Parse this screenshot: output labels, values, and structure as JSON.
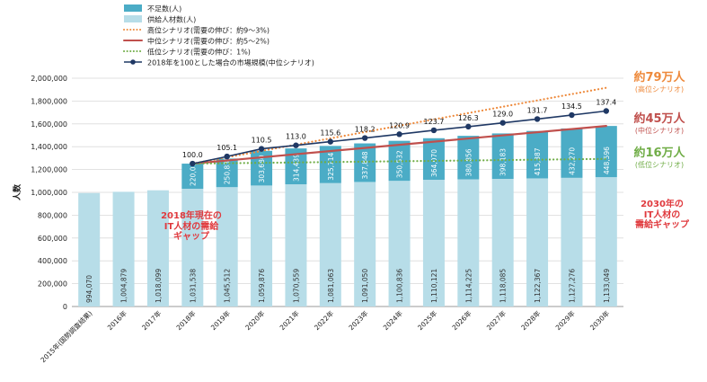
{
  "chart_data": {
    "type": "bar",
    "ylabel": "人数",
    "ylim": [
      0,
      2000000
    ],
    "yticks": [
      "0",
      "200,000",
      "400,000",
      "600,000",
      "800,000",
      "1,000,000",
      "1,200,000",
      "1,400,000",
      "1,600,000",
      "1,800,000",
      "2,000,000"
    ],
    "grid": true,
    "legend_position": "top-left",
    "categories": [
      "2015年(国勢調査結果)",
      "2016年",
      "2017年",
      "2018年",
      "2019年",
      "2020年",
      "2021年",
      "2022年",
      "2023年",
      "2024年",
      "2025年",
      "2026年",
      "2027年",
      "2028年",
      "2029年",
      "2030年"
    ],
    "supply": {
      "name": "供給人材数(人)",
      "values": [
        994070,
        1004879,
        1018099,
        1031538,
        1045512,
        1059876,
        1070559,
        1081063,
        1091050,
        1100836,
        1110121,
        1114225,
        1118085,
        1122367,
        1127276,
        1133049
      ],
      "labels": [
        "994,070",
        "1,004,879",
        "1,018,099",
        "1,031,538",
        "1,045,512",
        "1,059,876",
        "1,070,559",
        "1,081,063",
        "1,091,050",
        "1,100,836",
        "1,110,121",
        "1,114,225",
        "1,118,085",
        "1,122,367",
        "1,127,276",
        "1,133,049"
      ]
    },
    "shortage": {
      "name": "不足数(人)",
      "start_index": 3,
      "values": [
        220000,
        250835,
        303680,
        314439,
        325714,
        337848,
        350532,
        364070,
        380856,
        398183,
        415387,
        432270,
        448596
      ],
      "labels": [
        "220,000",
        "250,835",
        "303,680",
        "314,439",
        "325,714",
        "337,848",
        "350,532",
        "364,070",
        "380,856",
        "398,183",
        "415,387",
        "432,270",
        "448,596"
      ]
    },
    "scenario_lines": [
      {
        "name": "高位シナリオ(需要の伸び：約9〜3%)",
        "color": "#ee8a3c",
        "dash": "dot",
        "start_index": 3,
        "values": [
          1251538,
          1916049
        ]
      },
      {
        "name": "中位シナリオ(需要の伸び：約5〜2%)",
        "color": "#c0504d",
        "dash": "solid",
        "start_index": 3,
        "values": [
          1251538,
          1581645
        ]
      },
      {
        "name": "低位シナリオ(需要の伸び：1%)",
        "color": "#70ad47",
        "dash": "dot",
        "start_index": 3,
        "values": [
          1251538,
          1293049
        ]
      }
    ],
    "index_series": {
      "name": "2018年を100とした場合の市場規模(中位シナリオ)",
      "start_index": 3,
      "values": [
        100.0,
        105.1,
        110.5,
        113.0,
        115.6,
        118.2,
        120.9,
        123.7,
        126.3,
        129.0,
        131.7,
        134.5,
        137.4
      ],
      "labels": [
        "100.0",
        "105.1",
        "110.5",
        "113.0",
        "115.6",
        "118.2",
        "120.9",
        "123.7",
        "126.3",
        "129.0",
        "131.7",
        "134.5",
        "137.4"
      ]
    },
    "colors": {
      "supply": "#b7dde8",
      "shortage": "#4bacc6",
      "index_line": "#1f3864",
      "grid": "#d9d9d9"
    }
  },
  "annotations": {
    "high": {
      "big": "約79万人",
      "small": "(高位シナリオ)",
      "color": "#ee8a3c"
    },
    "mid": {
      "big": "約45万人",
      "small": "(中位シナリオ)",
      "color": "#c0504d"
    },
    "low": {
      "big": "約16万人",
      "small": "(低位シナリオ)",
      "color": "#70ad47"
    },
    "gap2018": {
      "lines": [
        "2018年現在の",
        "IT人材の需給",
        "ギャップ"
      ],
      "color": "#e03a3e"
    },
    "gap2030": {
      "lines": [
        "2030年の",
        "IT人材の",
        "需給ギャップ"
      ],
      "color": "#e03a3e"
    }
  }
}
